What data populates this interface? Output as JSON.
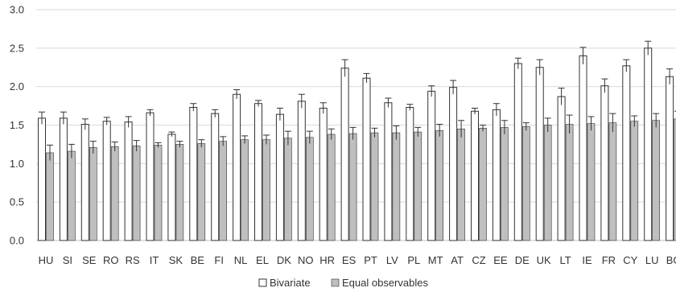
{
  "chart_data": {
    "type": "bar",
    "title": "",
    "xlabel": "",
    "ylabel": "",
    "ylim": [
      0,
      3
    ],
    "yticks": [
      "0.0",
      "0.5",
      "1.0",
      "1.5",
      "2.0",
      "2.5",
      "3.0"
    ],
    "grid": true,
    "legend_position": "bottom",
    "categories": [
      "HU",
      "SI",
      "SE",
      "RO",
      "RS",
      "IT",
      "SK",
      "BE",
      "FI",
      "NL",
      "EL",
      "DK",
      "NO",
      "HR",
      "ES",
      "PT",
      "LV",
      "PL",
      "MT",
      "AT",
      "CZ",
      "EE",
      "DE",
      "UK",
      "LT",
      "IE",
      "FR",
      "CY",
      "LU",
      "BG"
    ],
    "series": [
      {
        "name": "Bivariate",
        "color": "#ffffff",
        "values": [
          1.59,
          1.59,
          1.51,
          1.55,
          1.54,
          1.66,
          1.38,
          1.73,
          1.65,
          1.9,
          1.78,
          1.64,
          1.81,
          1.72,
          2.24,
          2.11,
          1.79,
          1.73,
          1.94,
          1.99,
          1.68,
          1.7,
          2.3,
          2.25,
          1.87,
          2.4,
          2.01,
          2.27,
          2.5,
          2.13
        ],
        "errors": [
          0.08,
          0.08,
          0.07,
          0.05,
          0.07,
          0.04,
          0.03,
          0.05,
          0.05,
          0.06,
          0.04,
          0.08,
          0.09,
          0.07,
          0.11,
          0.06,
          0.06,
          0.04,
          0.07,
          0.09,
          0.04,
          0.08,
          0.07,
          0.1,
          0.11,
          0.11,
          0.09,
          0.08,
          0.09,
          0.1
        ]
      },
      {
        "name": "Equal observables",
        "color": "#bfbfbf",
        "values": [
          1.14,
          1.16,
          1.21,
          1.22,
          1.23,
          1.24,
          1.25,
          1.26,
          1.29,
          1.31,
          1.31,
          1.33,
          1.34,
          1.38,
          1.39,
          1.4,
          1.4,
          1.41,
          1.43,
          1.45,
          1.46,
          1.47,
          1.48,
          1.5,
          1.51,
          1.52,
          1.53,
          1.55,
          1.56,
          1.58
        ],
        "errors": [
          0.1,
          0.09,
          0.08,
          0.06,
          0.07,
          0.03,
          0.04,
          0.05,
          0.06,
          0.05,
          0.06,
          0.09,
          0.08,
          0.07,
          0.08,
          0.06,
          0.09,
          0.06,
          0.08,
          0.11,
          0.04,
          0.09,
          0.05,
          0.09,
          0.12,
          0.09,
          0.12,
          0.07,
          0.09,
          0.1
        ]
      }
    ]
  },
  "colors": {
    "gridline": "#d9d9d9",
    "axis": "#bfbfbf",
    "bar_outline": "#333333",
    "error_bar": "#333333"
  }
}
